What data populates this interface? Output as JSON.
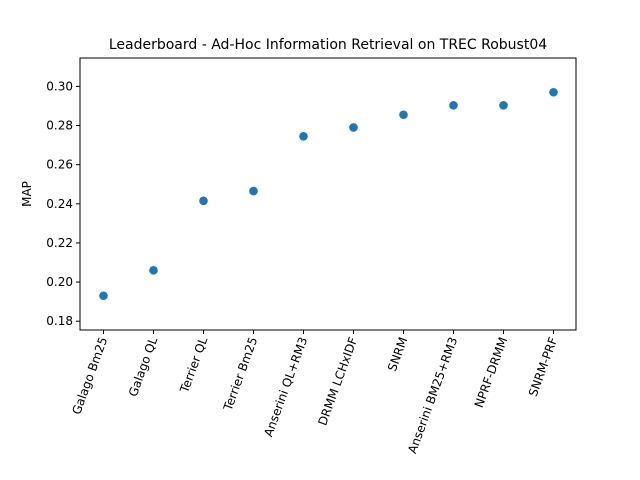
{
  "chart_data": {
    "type": "scatter",
    "title": "Leaderboard - Ad-Hoc Information Retrieval on TREC Robust04",
    "xlabel": "",
    "ylabel": "MAP",
    "categories": [
      "Galago Bm25",
      "Galago QL",
      "Terrier QL",
      "Terrier Bm25",
      "Anserini QL+RM3",
      "DRMM LCHxIDF",
      "SNRM",
      "Anserini BM25+RM3",
      "NPRF-DRMM",
      "SNRM-PRF"
    ],
    "values": [
      0.193,
      0.206,
      0.2415,
      0.2465,
      0.2745,
      0.279,
      0.2855,
      0.2903,
      0.2903,
      0.297
    ],
    "ylim": [
      0.1755,
      0.3145
    ],
    "yticks": [
      "0.18",
      "0.20",
      "0.22",
      "0.24",
      "0.26",
      "0.28",
      "0.30"
    ],
    "marker_color": "#1f77b4",
    "grid": false,
    "x_tick_rotation_deg": -70
  }
}
